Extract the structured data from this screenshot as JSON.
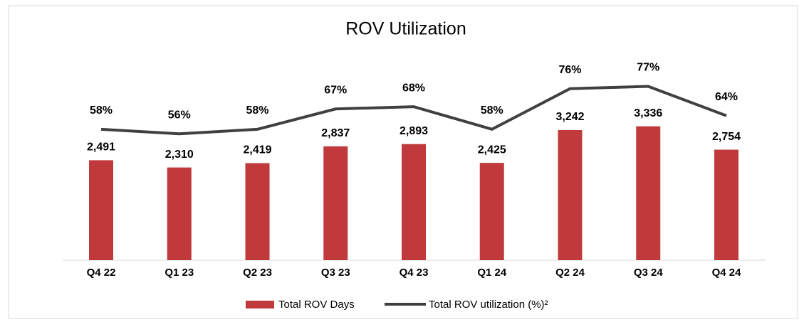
{
  "chart_data": {
    "type": "bar-line",
    "title": "ROV Utilization",
    "categories": [
      "Q4 22",
      "Q1 23",
      "Q2 23",
      "Q3 23",
      "Q4 23",
      "Q1 24",
      "Q2 24",
      "Q3 24",
      "Q4 24"
    ],
    "series": [
      {
        "name": "Total ROV Days",
        "type": "bar",
        "color": "#c0393b",
        "values": [
          2491,
          2310,
          2419,
          2837,
          2893,
          2425,
          3242,
          3336,
          2754
        ],
        "value_labels": [
          "2,491",
          "2,310",
          "2,419",
          "2,837",
          "2,893",
          "2,425",
          "3,242",
          "3,336",
          "2,754"
        ]
      },
      {
        "name": "Total ROV utilization (%)²",
        "type": "line",
        "axis": "y2",
        "color": "#404040",
        "values": [
          58,
          56,
          58,
          67,
          68,
          58,
          76,
          77,
          64
        ],
        "value_labels": [
          "58%",
          "56%",
          "58%",
          "67%",
          "68%",
          "58%",
          "76%",
          "77%",
          "64%"
        ]
      }
    ],
    "ylim": [
      0,
      4500
    ],
    "y2lim": [
      0,
      80
    ],
    "legend": "bottom"
  }
}
